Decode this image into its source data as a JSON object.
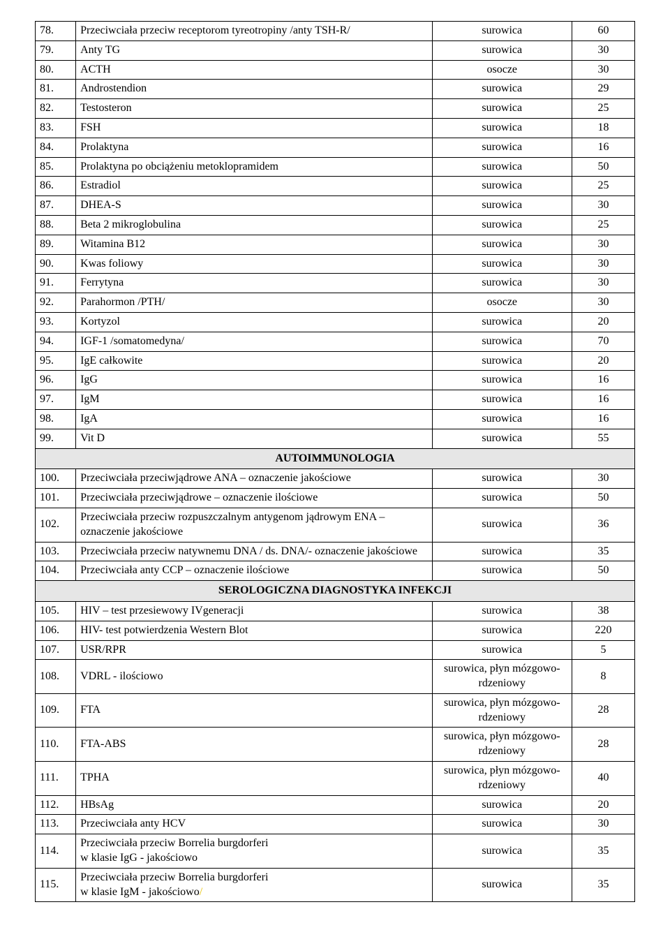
{
  "table": {
    "columns": {
      "num_width": 58,
      "name_width": 510,
      "mat_width": 200,
      "val_width": 90
    },
    "background_color": "#ffffff",
    "section_bg": "#e6e6e6",
    "border_color": "#000000",
    "font_family": "Times New Roman",
    "font_size_pt": 12
  },
  "rows": [
    {
      "num": "78.",
      "name": "Przeciwciała przeciw receptorom tyreotropiny /anty TSH-R/",
      "mat": "surowica",
      "val": "60"
    },
    {
      "num": "79.",
      "name": "Anty TG",
      "mat": "surowica",
      "val": "30"
    },
    {
      "num": "80.",
      "name": "ACTH",
      "mat": "osocze",
      "val": "30"
    },
    {
      "num": "81.",
      "name": "Androstendion",
      "mat": "surowica",
      "val": "29"
    },
    {
      "num": "82.",
      "name": "Testosteron",
      "mat": "surowica",
      "val": "25"
    },
    {
      "num": "83.",
      "name": "FSH",
      "mat": "surowica",
      "val": "18"
    },
    {
      "num": "84.",
      "name": "Prolaktyna",
      "mat": "surowica",
      "val": "16"
    },
    {
      "num": "85.",
      "name": "Prolaktyna po obciążeniu metoklopramidem",
      "mat": "surowica",
      "val": "50"
    },
    {
      "num": "86.",
      "name": "Estradiol",
      "mat": "surowica",
      "val": "25"
    },
    {
      "num": "87.",
      "name": "DHEA-S",
      "mat": "surowica",
      "val": "30"
    },
    {
      "num": "88.",
      "name": "Beta 2 mikroglobulina",
      "mat": "surowica",
      "val": "25"
    },
    {
      "num": "89.",
      "name": "Witamina B12",
      "mat": "surowica",
      "val": "30"
    },
    {
      "num": "90.",
      "name": "Kwas foliowy",
      "mat": "surowica",
      "val": "30"
    },
    {
      "num": "91.",
      "name": "Ferrytyna",
      "mat": "surowica",
      "val": "30"
    },
    {
      "num": "92.",
      "name": "Parahormon /PTH/",
      "mat": "osocze",
      "val": "30"
    },
    {
      "num": "93.",
      "name": "Kortyzol",
      "mat": "surowica",
      "val": "20"
    },
    {
      "num": "94.",
      "name": "IGF-1 /somatomedyna/",
      "mat": "surowica",
      "val": "70"
    },
    {
      "num": "95.",
      "name": "IgE całkowite",
      "mat": "surowica",
      "val": "20"
    },
    {
      "num": "96.",
      "name": "IgG",
      "mat": "surowica",
      "val": "16"
    },
    {
      "num": "97.",
      "name": "IgM",
      "mat": "surowica",
      "val": "16"
    },
    {
      "num": "98.",
      "name": "IgA",
      "mat": "surowica",
      "val": "16"
    },
    {
      "num": "99.",
      "name": "Vit D",
      "mat": "surowica",
      "val": "55"
    }
  ],
  "section1": "AUTOIMMUNOLOGIA",
  "rows2": [
    {
      "num": "100.",
      "name": "Przeciwciała przeciwjądrowe ANA – oznaczenie jakościowe",
      "mat": "surowica",
      "val": "30"
    },
    {
      "num": "101.",
      "name": "Przeciwciała przeciwjądrowe – oznaczenie ilościowe",
      "mat": "surowica",
      "val": "50"
    },
    {
      "num": "102.",
      "name": "Przeciwciała przeciw rozpuszczalnym antygenom jądrowym ENA –oznaczenie jakościowe",
      "mat": "surowica",
      "val": "36"
    },
    {
      "num": "103.",
      "name": "Przeciwciała przeciw natywnemu DNA / ds. DNA/- oznaczenie jakościowe",
      "mat": "surowica",
      "val": "35"
    },
    {
      "num": "104.",
      "name": "Przeciwciała anty CCP – oznaczenie ilościowe",
      "mat": "surowica",
      "val": "50"
    }
  ],
  "section2": "SEROLOGICZNA DIAGNOSTYKA INFEKCJI",
  "rows3": [
    {
      "num": "105.",
      "name": "HIV – test przesiewowy IVgeneracji",
      "mat": "surowica",
      "val": "38"
    },
    {
      "num": "106.",
      "name": "HIV- test potwierdzenia Western Blot",
      "mat": "surowica",
      "val": "220"
    },
    {
      "num": "107.",
      "name": "USR/RPR",
      "mat": "surowica",
      "val": "5"
    },
    {
      "num": "108.",
      "name": "VDRL - ilościowo",
      "mat": "surowica, płyn mózgowo-rdzeniowy",
      "val": "8"
    },
    {
      "num": "109.",
      "name": "FTA",
      "mat": "surowica, płyn mózgowo-rdzeniowy",
      "val": "28"
    },
    {
      "num": "110.",
      "name": "FTA-ABS",
      "mat": "surowica, płyn mózgowo-rdzeniowy",
      "val": "28"
    },
    {
      "num": "111.",
      "name": "TPHA",
      "mat": "surowica, płyn mózgowo-rdzeniowy",
      "val": "40"
    },
    {
      "num": "112.",
      "name": "HBsAg",
      "mat": "surowica",
      "val": "20"
    },
    {
      "num": "113.",
      "name": "Przeciwciała anty HCV",
      "mat": "surowica",
      "val": "30"
    },
    {
      "num": "114.",
      "name": "Przeciwciała przeciw Borrelia burgdorferi\nw klasie IgG - jakościowo",
      "mat": "surowica",
      "val": "35"
    }
  ],
  "row115": {
    "num": "115.",
    "name_part1": "Przeciwciała przeciw Borrelia burgdorferi",
    "name_part2": "w klasie IgM - jakościowo",
    "mat": "surowica",
    "val": "35"
  }
}
